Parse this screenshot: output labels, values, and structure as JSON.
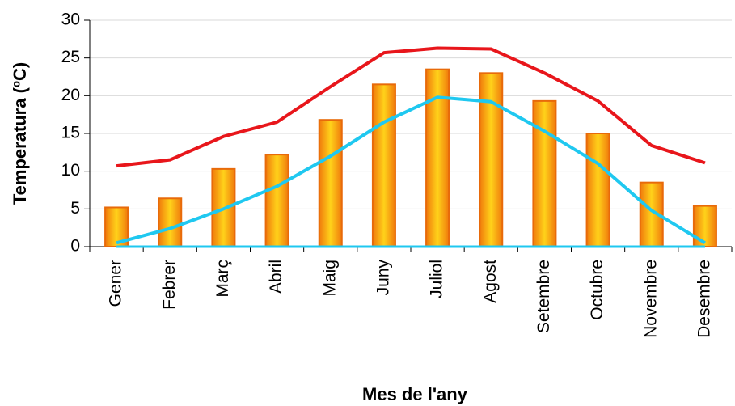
{
  "chart_data": {
    "type": "bar_line",
    "x_label": "Mes de l'any",
    "y_label": "Temperatura (ºC)",
    "categories": [
      "Gener",
      "Febrer",
      "Març",
      "Abril",
      "Maig",
      "Juny",
      "Juliol",
      "Agost",
      "Setembre",
      "Octubre",
      "Novembre",
      "Desembre"
    ],
    "values": [
      5.2,
      6.4,
      10.3,
      12.2,
      16.8,
      21.5,
      23.5,
      23.0,
      19.3,
      15.0,
      8.5,
      5.4
    ],
    "color": "#f39c12",
    "series": [
      {
        "color": "#e8161b",
        "values": [
          10.7,
          11.5,
          14.6,
          16.5,
          21.2,
          25.7,
          26.3,
          26.2,
          23.0,
          19.3,
          13.4,
          11.1
        ]
      },
      {
        "color": "#1fc8f0",
        "values": [
          0.5,
          2.4,
          5.0,
          8.0,
          12.0,
          16.5,
          19.8,
          19.2,
          15.3,
          11.0,
          4.8,
          0.5
        ]
      }
    ],
    "ylim": [
      0,
      30
    ],
    "yticks": [
      0,
      5,
      10,
      15,
      20,
      25,
      30
    ],
    "grid": true
  }
}
